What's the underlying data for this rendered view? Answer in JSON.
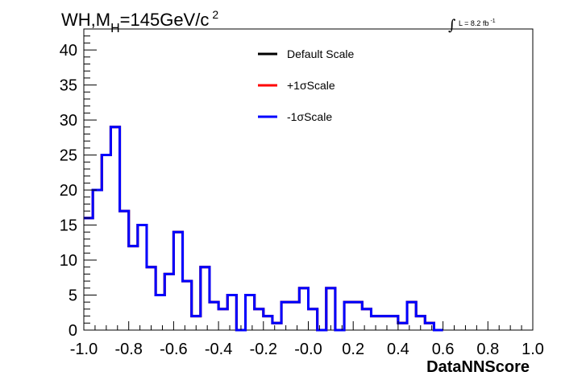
{
  "chart_data": {
    "type": "line",
    "title_main": "WH,M",
    "title_sub": "H",
    "title_rest": "=145GeV/c",
    "title_sup": "2",
    "lumi_label": "L = 8.2 fb",
    "lumi_sup": "-1",
    "xlabel": "DataNNScore",
    "xlim": [
      -1.0,
      1.0
    ],
    "ylim": [
      0,
      43
    ],
    "x_ticks": [
      -1.0,
      -0.8,
      -0.6,
      -0.4,
      -0.2,
      0.0,
      0.2,
      0.4,
      0.6,
      0.8,
      1.0
    ],
    "x_tick_labels": [
      "-1.0",
      "-0.8",
      "-0.6",
      "-0.4",
      "-0.2",
      "-0.0",
      "0.2",
      "0.4",
      "0.6",
      "0.8",
      "1.0"
    ],
    "y_ticks": [
      0,
      5,
      10,
      15,
      20,
      25,
      30,
      35,
      40
    ],
    "y_tick_labels": [
      "0",
      "5",
      "10",
      "15",
      "20",
      "25",
      "30",
      "35",
      "40"
    ],
    "bin_edges_start": -1.0,
    "bin_width": 0.04,
    "legend": [
      {
        "name": "Default Scale",
        "color": "#000000"
      },
      {
        "name": "+1σScale",
        "color": "#ff0000"
      },
      {
        "name": "-1σScale",
        "color": "#0000ff"
      }
    ],
    "series": [
      {
        "name": "Default Scale",
        "color": "#000000",
        "values": [
          16,
          20,
          25,
          29,
          17,
          12,
          15,
          9,
          5,
          8,
          14,
          7,
          2,
          9,
          4,
          3,
          5,
          0,
          5,
          3,
          2,
          1,
          4,
          4,
          6,
          3,
          0,
          6,
          0,
          4,
          4,
          3,
          2,
          2,
          2,
          1,
          4,
          2,
          1,
          0
        ]
      },
      {
        "name": "+1σScale",
        "color": "#ff0000",
        "values": [
          16,
          20,
          25,
          29,
          17,
          12,
          15,
          9,
          5,
          8,
          14,
          7,
          2,
          9,
          4,
          3,
          5,
          0,
          5,
          3,
          2,
          1,
          4,
          4,
          6,
          3,
          0,
          6,
          0,
          4,
          4,
          3,
          2,
          2,
          2,
          1,
          4,
          2,
          1,
          0
        ]
      },
      {
        "name": "-1σScale",
        "color": "#0000ff",
        "values": [
          16,
          20,
          25,
          29,
          17,
          12,
          15,
          9,
          5,
          8,
          14,
          7,
          2,
          9,
          4,
          3,
          5,
          0,
          5,
          3,
          2,
          1,
          4,
          4,
          6,
          3,
          0,
          6,
          0,
          4,
          4,
          3,
          2,
          2,
          2,
          1,
          4,
          2,
          1,
          0
        ]
      }
    ],
    "grid": false,
    "legend_position": "top-center"
  }
}
